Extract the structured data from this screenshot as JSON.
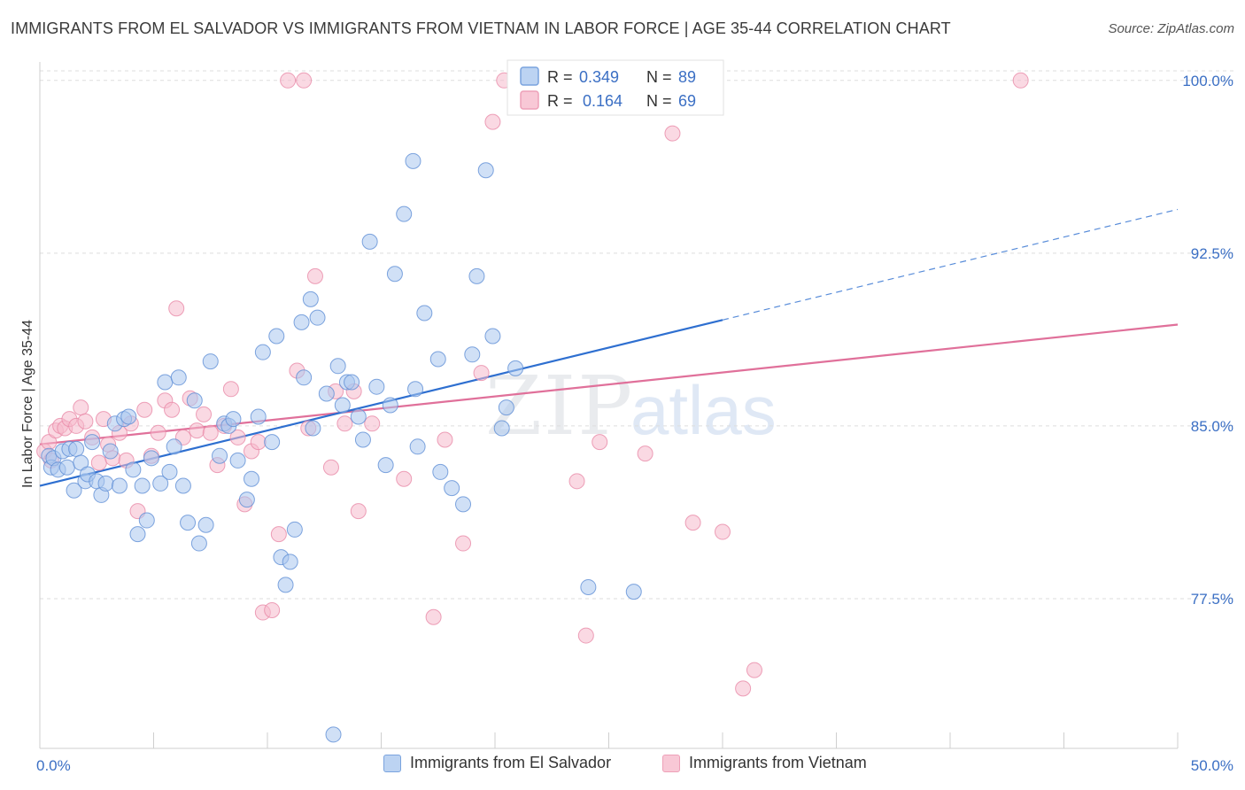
{
  "header": {
    "title": "IMMIGRANTS FROM EL SALVADOR VS IMMIGRANTS FROM VIETNAM IN LABOR FORCE | AGE 35-44 CORRELATION CHART",
    "source": "Source: ZipAtlas.com"
  },
  "watermark": {
    "zip": "ZIP",
    "atlas": "atlas"
  },
  "stats": {
    "r_label": "R =",
    "n_label": "N =",
    "series1": {
      "r": "0.349",
      "n": "89"
    },
    "series2": {
      "r": "0.164",
      "n": "69"
    }
  },
  "colors": {
    "series1_fill": "#a9c6ee",
    "series1_stroke": "#5f8fd6",
    "series1_line": "#2e6fd0",
    "series2_fill": "#f6b9cc",
    "series2_stroke": "#e98aa8",
    "series2_line": "#e0709a",
    "grid": "#dddddd"
  },
  "chart_data": {
    "type": "scatter",
    "xlabel": "",
    "ylabel": "In Labor Force | Age 35-44",
    "xlim": [
      0,
      50
    ],
    "ylim": [
      71,
      100.8
    ],
    "y_ticks": [
      {
        "value": 100.0,
        "label": "100.0%"
      },
      {
        "value": 92.5,
        "label": "92.5%"
      },
      {
        "value": 85.0,
        "label": "85.0%"
      },
      {
        "value": 77.5,
        "label": "77.5%"
      }
    ],
    "x_ticks": [
      {
        "value": 0,
        "label": "0.0%"
      },
      {
        "value": 50,
        "label": "50.0%"
      }
    ],
    "x_minor_ticks": [
      0,
      5,
      10,
      15,
      20,
      25,
      30,
      35,
      40,
      45,
      50
    ],
    "grid": true,
    "legend_position": "top-center",
    "series": [
      {
        "name": "Immigrants from El Salvador",
        "trend": {
          "x": [
            0,
            30
          ],
          "y": [
            82.4,
            89.6
          ],
          "dashed_extension": {
            "x": [
              30,
              50
            ],
            "y": [
              89.6,
              94.4
            ]
          }
        },
        "points": [
          [
            0.4,
            83.7
          ],
          [
            0.5,
            83.2
          ],
          [
            0.6,
            83.6
          ],
          [
            0.8,
            83.1
          ],
          [
            1.0,
            83.9
          ],
          [
            1.2,
            83.2
          ],
          [
            1.3,
            84.0
          ],
          [
            1.5,
            82.2
          ],
          [
            1.6,
            84.0
          ],
          [
            1.8,
            83.4
          ],
          [
            2.0,
            82.6
          ],
          [
            2.1,
            82.9
          ],
          [
            2.3,
            84.3
          ],
          [
            2.5,
            82.6
          ],
          [
            2.7,
            82.0
          ],
          [
            2.9,
            82.5
          ],
          [
            3.1,
            83.9
          ],
          [
            3.3,
            85.1
          ],
          [
            3.5,
            82.4
          ],
          [
            3.7,
            85.3
          ],
          [
            3.9,
            85.4
          ],
          [
            4.1,
            83.1
          ],
          [
            4.3,
            80.3
          ],
          [
            4.5,
            82.4
          ],
          [
            4.7,
            80.9
          ],
          [
            4.9,
            83.6
          ],
          [
            5.3,
            82.5
          ],
          [
            5.5,
            86.9
          ],
          [
            5.7,
            83.0
          ],
          [
            5.9,
            84.1
          ],
          [
            6.1,
            87.1
          ],
          [
            6.3,
            82.4
          ],
          [
            6.5,
            80.8
          ],
          [
            6.8,
            86.1
          ],
          [
            7.0,
            79.9
          ],
          [
            7.3,
            80.7
          ],
          [
            7.5,
            87.8
          ],
          [
            7.9,
            83.7
          ],
          [
            8.1,
            85.1
          ],
          [
            8.3,
            85.0
          ],
          [
            8.5,
            85.3
          ],
          [
            8.7,
            83.5
          ],
          [
            9.1,
            81.8
          ],
          [
            9.3,
            82.7
          ],
          [
            9.6,
            85.4
          ],
          [
            9.8,
            88.2
          ],
          [
            10.2,
            84.3
          ],
          [
            10.4,
            88.9
          ],
          [
            10.6,
            79.3
          ],
          [
            10.8,
            78.1
          ],
          [
            11.0,
            79.1
          ],
          [
            11.2,
            80.5
          ],
          [
            11.5,
            89.5
          ],
          [
            11.6,
            87.1
          ],
          [
            11.9,
            90.5
          ],
          [
            12.0,
            84.9
          ],
          [
            12.2,
            89.7
          ],
          [
            12.6,
            86.4
          ],
          [
            12.9,
            71.6
          ],
          [
            13.1,
            87.6
          ],
          [
            13.3,
            85.9
          ],
          [
            13.5,
            86.9
          ],
          [
            13.7,
            86.9
          ],
          [
            14.0,
            85.4
          ],
          [
            14.2,
            84.4
          ],
          [
            14.5,
            93.0
          ],
          [
            14.8,
            86.7
          ],
          [
            15.2,
            83.3
          ],
          [
            15.4,
            85.9
          ],
          [
            15.6,
            91.6
          ],
          [
            16.0,
            94.2
          ],
          [
            16.4,
            96.5
          ],
          [
            16.5,
            86.6
          ],
          [
            16.6,
            84.1
          ],
          [
            16.9,
            89.9
          ],
          [
            17.5,
            87.9
          ],
          [
            17.6,
            83.0
          ],
          [
            18.1,
            82.3
          ],
          [
            18.6,
            81.6
          ],
          [
            19.0,
            88.1
          ],
          [
            19.2,
            91.5
          ],
          [
            19.6,
            96.1
          ],
          [
            19.9,
            88.9
          ],
          [
            20.3,
            84.9
          ],
          [
            20.5,
            85.8
          ],
          [
            20.9,
            87.5
          ],
          [
            22.4,
            100.2
          ],
          [
            24.1,
            78.0
          ],
          [
            26.1,
            77.8
          ]
        ]
      },
      {
        "name": "Immigrants from Vietnam",
        "trend": {
          "x": [
            0,
            50
          ],
          "y": [
            84.2,
            89.4
          ]
        },
        "points": [
          [
            0.2,
            83.9
          ],
          [
            0.4,
            84.3
          ],
          [
            0.5,
            83.5
          ],
          [
            0.7,
            84.8
          ],
          [
            0.9,
            85.0
          ],
          [
            1.1,
            84.9
          ],
          [
            1.3,
            85.3
          ],
          [
            1.6,
            85.0
          ],
          [
            1.8,
            85.8
          ],
          [
            2.0,
            85.2
          ],
          [
            2.3,
            84.5
          ],
          [
            2.6,
            83.4
          ],
          [
            2.8,
            85.3
          ],
          [
            3.0,
            84.2
          ],
          [
            3.2,
            83.6
          ],
          [
            3.5,
            84.7
          ],
          [
            3.8,
            83.5
          ],
          [
            4.0,
            85.1
          ],
          [
            4.3,
            81.3
          ],
          [
            4.6,
            85.7
          ],
          [
            4.9,
            83.7
          ],
          [
            5.2,
            84.7
          ],
          [
            5.5,
            86.1
          ],
          [
            5.8,
            85.7
          ],
          [
            6.0,
            90.1
          ],
          [
            6.3,
            84.5
          ],
          [
            6.6,
            86.2
          ],
          [
            6.9,
            84.8
          ],
          [
            7.2,
            85.5
          ],
          [
            7.5,
            84.7
          ],
          [
            7.8,
            83.3
          ],
          [
            8.1,
            85.0
          ],
          [
            8.4,
            86.6
          ],
          [
            8.7,
            84.5
          ],
          [
            9.0,
            81.6
          ],
          [
            9.3,
            83.9
          ],
          [
            9.6,
            84.3
          ],
          [
            9.8,
            76.9
          ],
          [
            10.2,
            77.0
          ],
          [
            10.5,
            80.3
          ],
          [
            10.9,
            100.0
          ],
          [
            11.3,
            87.4
          ],
          [
            11.6,
            100.0
          ],
          [
            11.8,
            84.9
          ],
          [
            12.1,
            91.5
          ],
          [
            12.8,
            83.2
          ],
          [
            13.0,
            86.5
          ],
          [
            13.4,
            85.1
          ],
          [
            13.8,
            86.5
          ],
          [
            14.0,
            81.3
          ],
          [
            14.6,
            85.1
          ],
          [
            16.0,
            82.7
          ],
          [
            17.3,
            76.7
          ],
          [
            17.8,
            84.4
          ],
          [
            18.6,
            79.9
          ],
          [
            19.4,
            87.3
          ],
          [
            19.9,
            98.2
          ],
          [
            20.4,
            100.0
          ],
          [
            23.6,
            82.6
          ],
          [
            24.0,
            75.9
          ],
          [
            24.6,
            84.3
          ],
          [
            26.6,
            83.8
          ],
          [
            27.8,
            97.7
          ],
          [
            28.7,
            80.8
          ],
          [
            30.0,
            80.4
          ],
          [
            31.4,
            74.4
          ],
          [
            30.9,
            73.6
          ],
          [
            43.1,
            100.0
          ],
          [
            25.9,
            100.0
          ]
        ]
      }
    ]
  }
}
